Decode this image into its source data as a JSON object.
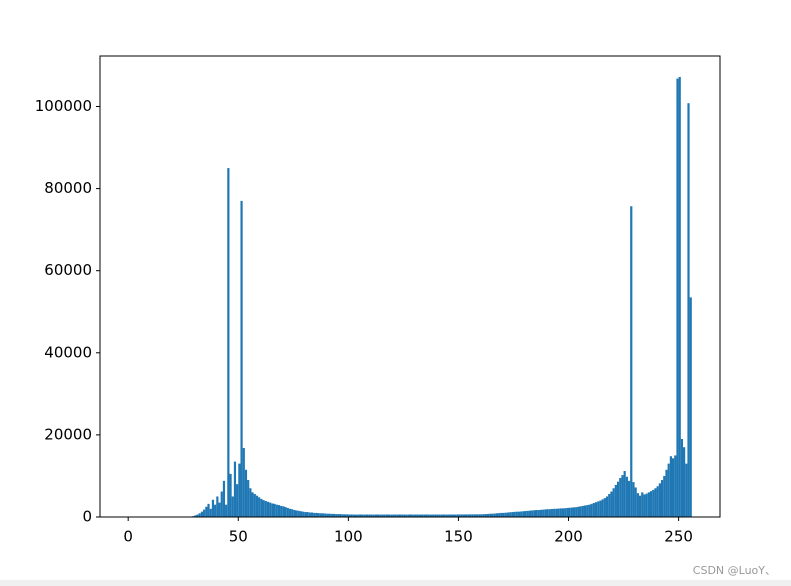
{
  "chart_data": {
    "type": "histogram",
    "bins": [
      0,
      1,
      2,
      3,
      4,
      5,
      6,
      7,
      8,
      9,
      10,
      11,
      12,
      13,
      14,
      15,
      16,
      17,
      18,
      19,
      20,
      21,
      22,
      23,
      24,
      25,
      26,
      27,
      28,
      29,
      30,
      31,
      32,
      33,
      34,
      35,
      36,
      37,
      38,
      39,
      40,
      41,
      42,
      43,
      44,
      45,
      46,
      47,
      48,
      49,
      50,
      51,
      52,
      53,
      54,
      55,
      56,
      57,
      58,
      59,
      60,
      61,
      62,
      63,
      64,
      65,
      66,
      67,
      68,
      69,
      70,
      71,
      72,
      73,
      74,
      75,
      76,
      77,
      78,
      79,
      80,
      81,
      82,
      83,
      84,
      85,
      86,
      87,
      88,
      89,
      90,
      91,
      92,
      93,
      94,
      95,
      96,
      97,
      98,
      99,
      100,
      101,
      102,
      103,
      104,
      105,
      106,
      107,
      108,
      109,
      110,
      111,
      112,
      113,
      114,
      115,
      116,
      117,
      118,
      119,
      120,
      121,
      122,
      123,
      124,
      125,
      126,
      127,
      128,
      129,
      130,
      131,
      132,
      133,
      134,
      135,
      136,
      137,
      138,
      139,
      140,
      141,
      142,
      143,
      144,
      145,
      146,
      147,
      148,
      149,
      150,
      151,
      152,
      153,
      154,
      155,
      156,
      157,
      158,
      159,
      160,
      161,
      162,
      163,
      164,
      165,
      166,
      167,
      168,
      169,
      170,
      171,
      172,
      173,
      174,
      175,
      176,
      177,
      178,
      179,
      180,
      181,
      182,
      183,
      184,
      185,
      186,
      187,
      188,
      189,
      190,
      191,
      192,
      193,
      194,
      195,
      196,
      197,
      198,
      199,
      200,
      201,
      202,
      203,
      204,
      205,
      206,
      207,
      208,
      209,
      210,
      211,
      212,
      213,
      214,
      215,
      216,
      217,
      218,
      219,
      220,
      221,
      222,
      223,
      224,
      225,
      226,
      227,
      228,
      229,
      230,
      231,
      232,
      233,
      234,
      235,
      236,
      237,
      238,
      239,
      240,
      241,
      242,
      243,
      244,
      245,
      246,
      247,
      248,
      249,
      250,
      251,
      252,
      253,
      254,
      255,
      256
    ],
    "counts": [
      0,
      0,
      0,
      0,
      0,
      0,
      0,
      0,
      0,
      0,
      0,
      0,
      0,
      0,
      0,
      0,
      0,
      0,
      0,
      0,
      0,
      0,
      0,
      0,
      0,
      0,
      0,
      0,
      100,
      200,
      400,
      600,
      900,
      1300,
      1800,
      2500,
      3200,
      2000,
      4200,
      3000,
      5000,
      3500,
      6200,
      8800,
      3000,
      85000,
      10500,
      5000,
      13500,
      8000,
      13000,
      77000,
      16800,
      11500,
      9000,
      7000,
      6000,
      5600,
      5200,
      4800,
      4400,
      4100,
      3900,
      3700,
      3500,
      3300,
      3200,
      3000,
      2900,
      2700,
      2600,
      2400,
      2200,
      2000,
      1900,
      1700,
      1600,
      1500,
      1400,
      1300,
      1200,
      1200,
      1100,
      1100,
      1000,
      1000,
      950,
      900,
      900,
      850,
      800,
      800,
      750,
      750,
      700,
      700,
      700,
      650,
      650,
      650,
      600,
      620,
      600,
      580,
      600,
      620,
      600,
      590,
      610,
      600,
      600,
      580,
      600,
      610,
      590,
      600,
      600,
      620,
      600,
      580,
      600,
      600,
      590,
      610,
      600,
      600,
      580,
      600,
      620,
      600,
      600,
      610,
      590,
      600,
      600,
      620,
      600,
      580,
      600,
      610,
      600,
      600,
      590,
      610,
      600,
      600,
      620,
      600,
      600,
      620,
      620,
      630,
      620,
      640,
      630,
      640,
      650,
      640,
      650,
      660,
      650,
      700,
      700,
      750,
      800,
      800,
      850,
      900,
      950,
      1000,
      1000,
      1050,
      1100,
      1150,
      1200,
      1250,
      1300,
      1300,
      1350,
      1400,
      1450,
      1500,
      1550,
      1600,
      1650,
      1700,
      1700,
      1750,
      1800,
      1850,
      1900,
      1900,
      1950,
      2000,
      2000,
      2050,
      2100,
      2100,
      2150,
      2200,
      2250,
      2300,
      2350,
      2400,
      2500,
      2600,
      2700,
      2800,
      2900,
      3000,
      3200,
      3400,
      3600,
      3800,
      4000,
      4300,
      4600,
      5000,
      5600,
      6200,
      7000,
      7800,
      8600,
      9500,
      10200,
      11200,
      9800,
      8800,
      75700,
      8500,
      7200,
      5800,
      5200,
      6000,
      5500,
      5700,
      6000,
      6300,
      6600,
      7000,
      7500,
      8200,
      9000,
      10000,
      11500,
      13000,
      14800,
      14300,
      15000,
      106800,
      107200,
      19000,
      17000,
      13000,
      100800,
      53500
    ],
    "color": "#1f77b4",
    "xlim": [
      -12.8,
      268.8
    ],
    "ylim": [
      0,
      112300
    ],
    "xticks": [
      0,
      50,
      100,
      150,
      200,
      250
    ],
    "yticks": [
      0,
      20000,
      40000,
      60000,
      80000,
      100000
    ],
    "watermark": "CSDN @LuoY、"
  }
}
